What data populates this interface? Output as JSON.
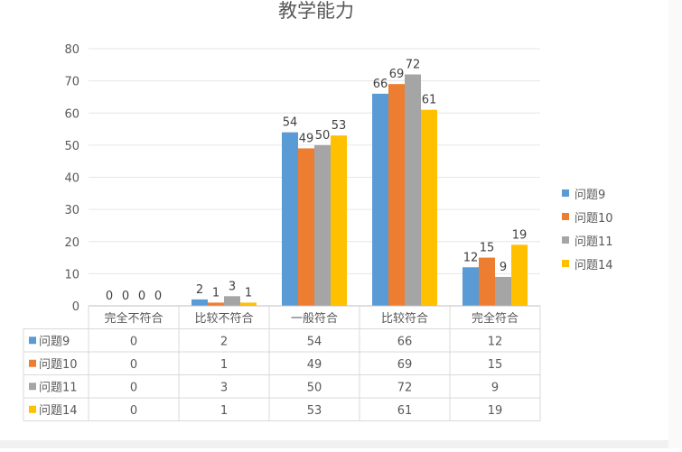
{
  "chart_data": {
    "type": "bar",
    "title": "教学能力",
    "categories": [
      "完全不符合",
      "比较不符合",
      "一般符合",
      "比较符合",
      "完全符合"
    ],
    "series": [
      {
        "name": "问题9",
        "color": "#5b9bd5",
        "values": [
          0,
          2,
          54,
          66,
          12
        ]
      },
      {
        "name": "问题10",
        "color": "#ed7d31",
        "values": [
          0,
          1,
          49,
          69,
          15
        ]
      },
      {
        "name": "问题11",
        "color": "#a5a5a5",
        "values": [
          0,
          3,
          50,
          72,
          9
        ]
      },
      {
        "name": "问题14",
        "color": "#ffc000",
        "values": [
          0,
          1,
          53,
          61,
          19
        ]
      }
    ],
    "ylim": [
      0,
      80
    ],
    "yticks": [
      0,
      10,
      20,
      30,
      40,
      50,
      60,
      70,
      80
    ],
    "grid": true,
    "legend_position": "right",
    "data_table": true
  }
}
